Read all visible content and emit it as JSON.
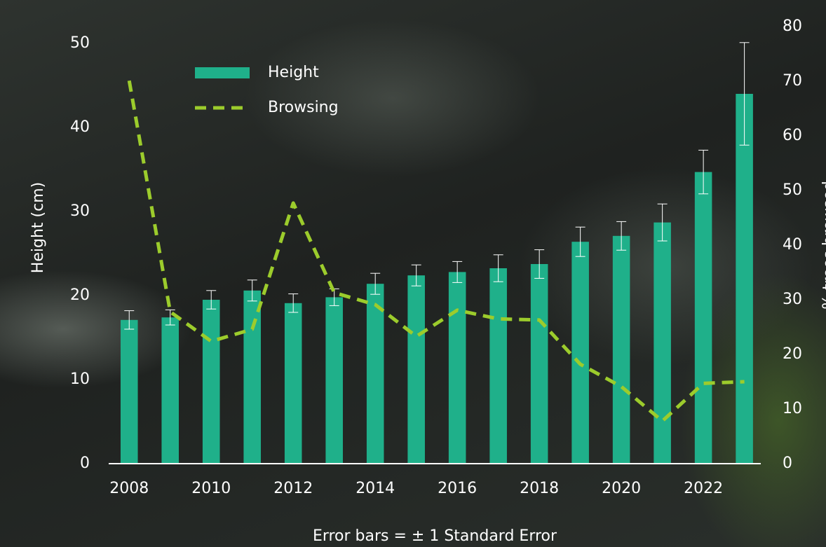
{
  "chart_data": {
    "type": "bar",
    "y_label": "Height (cm)",
    "y2_label": "% trees browsed",
    "note": "Error bars = ± 1 Standard Error",
    "x": [
      2008,
      2009,
      2010,
      2011,
      2012,
      2013,
      2014,
      2015,
      2016,
      2017,
      2018,
      2019,
      2020,
      2021,
      2022,
      2023
    ],
    "xlim": [
      2007.5,
      2023.4
    ],
    "xticks": [
      2008,
      2010,
      2012,
      2014,
      2016,
      2018,
      2020,
      2022
    ],
    "ylim": [
      0,
      50
    ],
    "yticks": [
      0,
      10,
      20,
      30,
      40,
      50
    ],
    "y2lim": [
      0,
      80
    ],
    "y2ticks": [
      0,
      10,
      20,
      30,
      40,
      50,
      60,
      70,
      80
    ],
    "legend": "top-left",
    "series": [
      {
        "name": "Height",
        "type": "bar",
        "color": "#1fb08a",
        "values": [
          17.1,
          17.4,
          19.5,
          20.6,
          19.1,
          19.8,
          21.4,
          22.4,
          22.8,
          23.25,
          23.75,
          26.4,
          27.1,
          28.7,
          34.7,
          44.0
        ],
        "errors": [
          1.1,
          0.9,
          1.1,
          1.25,
          1.1,
          1.0,
          1.25,
          1.25,
          1.25,
          1.6,
          1.7,
          1.75,
          1.7,
          2.2,
          2.6,
          6.1
        ]
      },
      {
        "name": "Browsing",
        "type": "line",
        "axis": "y2",
        "color": "#9ccc2c",
        "values": [
          70.1,
          27.8,
          22.4,
          24.6,
          47.7,
          31.3,
          29.1,
          23.3,
          28.1,
          26.5,
          26.3,
          18.2,
          14.1,
          7.8,
          14.7,
          15.0
        ]
      }
    ]
  }
}
